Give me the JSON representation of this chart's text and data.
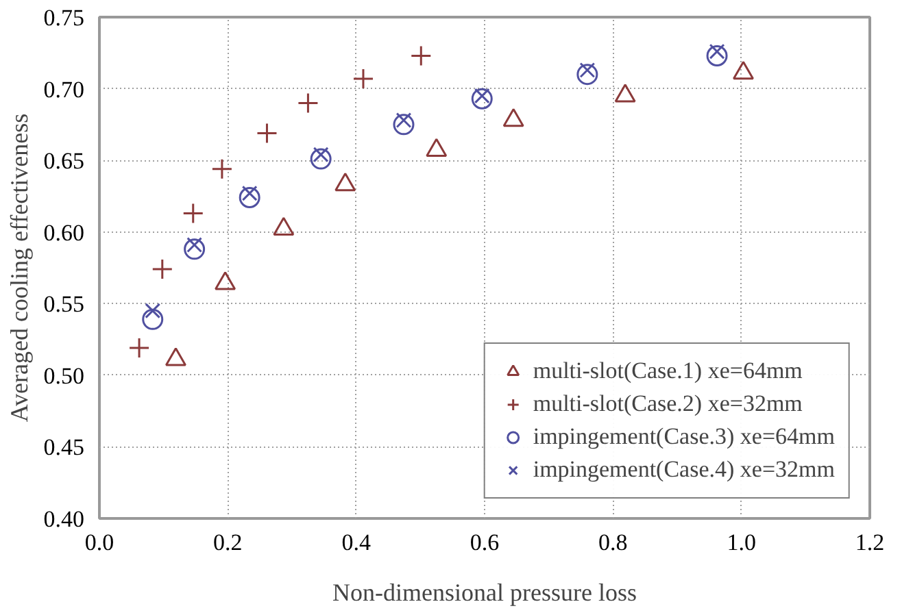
{
  "chart_data": {
    "type": "scatter",
    "xlabel": "Non-dimensional pressure loss",
    "ylabel": "Averaged cooling effectiveness",
    "xlim": [
      0,
      1.2
    ],
    "xticks": [
      {
        "value": 0,
        "label": "0.0"
      },
      {
        "value": 0.2,
        "label": "0.2"
      },
      {
        "value": 0.4,
        "label": "0.4"
      },
      {
        "value": 0.6,
        "label": "0.6"
      },
      {
        "value": 0.8,
        "label": "0.8"
      },
      {
        "value": 1,
        "label": "1.0"
      },
      {
        "value": 1.2,
        "label": "1.2"
      }
    ],
    "ylim": [
      0.4,
      0.75
    ],
    "yticks": [
      {
        "value": 0.4,
        "label": "0.40"
      },
      {
        "value": 0.45,
        "label": "0.45"
      },
      {
        "value": 0.5,
        "label": "0.50"
      },
      {
        "value": 0.55,
        "label": "0.55"
      },
      {
        "value": 0.6,
        "label": "0.60"
      },
      {
        "value": 0.65,
        "label": "0.65"
      },
      {
        "value": 0.7,
        "label": "0.70"
      },
      {
        "value": 0.75,
        "label": "0.75"
      }
    ],
    "grid": true,
    "legend": "bottom right",
    "series": [
      {
        "name": "multi-slot(Case.1) xe=64mm",
        "color": "#8b3a3a",
        "marker": "triangle",
        "x": [
          0.119,
          0.196,
          0.287,
          0.383,
          0.525,
          0.645,
          0.819,
          1.003
        ],
        "values": [
          0.511,
          0.564,
          0.602,
          0.633,
          0.657,
          0.678,
          0.695,
          0.711
        ]
      },
      {
        "name": "multi-slot(Case.2) xe=32mm",
        "color": "#8b3a3a",
        "marker": "cross",
        "x": [
          0.062,
          0.098,
          0.146,
          0.191,
          0.261,
          0.325,
          0.411,
          0.501
        ],
        "values": [
          0.519,
          0.574,
          0.613,
          0.644,
          0.669,
          0.69,
          0.707,
          0.723
        ]
      },
      {
        "name": "impingement(Case.3) xe=64mm",
        "color": "#5050a0",
        "marker": "circle",
        "x": [
          0.083,
          0.148,
          0.234,
          0.345,
          0.474,
          0.596,
          0.76,
          0.962
        ],
        "values": [
          0.539,
          0.588,
          0.624,
          0.651,
          0.675,
          0.693,
          0.71,
          0.723
        ]
      },
      {
        "name": "impingement(Case.4) xe=32mm",
        "color": "#5050a0",
        "marker": "x",
        "x": [
          0.083,
          0.148,
          0.234,
          0.345,
          0.474,
          0.596,
          0.76,
          0.962
        ],
        "values": [
          0.545,
          0.591,
          0.627,
          0.654,
          0.678,
          0.695,
          0.713,
          0.726
        ]
      }
    ]
  }
}
